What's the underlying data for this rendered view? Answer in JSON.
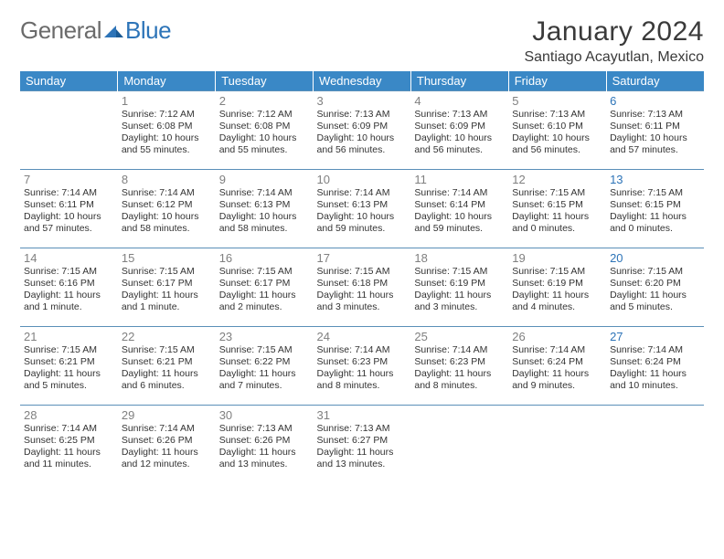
{
  "logo": {
    "text1": "General",
    "text2": "Blue"
  },
  "title": "January 2024",
  "location": "Santiago Acayutlan, Mexico",
  "colors": {
    "header_bg": "#3a88c6",
    "header_fg": "#ffffff",
    "row_border": "#5a8fb8",
    "daynum": "#808080",
    "text": "#333333",
    "saturday": "#2d74b8",
    "logo_gray": "#6b6b6b"
  },
  "weekdays": [
    "Sunday",
    "Monday",
    "Tuesday",
    "Wednesday",
    "Thursday",
    "Friday",
    "Saturday"
  ],
  "weeks": [
    [
      null,
      {
        "n": "1",
        "sr": "7:12 AM",
        "ss": "6:08 PM",
        "dl": "10 hours and 55 minutes."
      },
      {
        "n": "2",
        "sr": "7:12 AM",
        "ss": "6:08 PM",
        "dl": "10 hours and 55 minutes."
      },
      {
        "n": "3",
        "sr": "7:13 AM",
        "ss": "6:09 PM",
        "dl": "10 hours and 56 minutes."
      },
      {
        "n": "4",
        "sr": "7:13 AM",
        "ss": "6:09 PM",
        "dl": "10 hours and 56 minutes."
      },
      {
        "n": "5",
        "sr": "7:13 AM",
        "ss": "6:10 PM",
        "dl": "10 hours and 56 minutes."
      },
      {
        "n": "6",
        "sr": "7:13 AM",
        "ss": "6:11 PM",
        "dl": "10 hours and 57 minutes."
      }
    ],
    [
      {
        "n": "7",
        "sr": "7:14 AM",
        "ss": "6:11 PM",
        "dl": "10 hours and 57 minutes."
      },
      {
        "n": "8",
        "sr": "7:14 AM",
        "ss": "6:12 PM",
        "dl": "10 hours and 58 minutes."
      },
      {
        "n": "9",
        "sr": "7:14 AM",
        "ss": "6:13 PM",
        "dl": "10 hours and 58 minutes."
      },
      {
        "n": "10",
        "sr": "7:14 AM",
        "ss": "6:13 PM",
        "dl": "10 hours and 59 minutes."
      },
      {
        "n": "11",
        "sr": "7:14 AM",
        "ss": "6:14 PM",
        "dl": "10 hours and 59 minutes."
      },
      {
        "n": "12",
        "sr": "7:15 AM",
        "ss": "6:15 PM",
        "dl": "11 hours and 0 minutes."
      },
      {
        "n": "13",
        "sr": "7:15 AM",
        "ss": "6:15 PM",
        "dl": "11 hours and 0 minutes."
      }
    ],
    [
      {
        "n": "14",
        "sr": "7:15 AM",
        "ss": "6:16 PM",
        "dl": "11 hours and 1 minute."
      },
      {
        "n": "15",
        "sr": "7:15 AM",
        "ss": "6:17 PM",
        "dl": "11 hours and 1 minute."
      },
      {
        "n": "16",
        "sr": "7:15 AM",
        "ss": "6:17 PM",
        "dl": "11 hours and 2 minutes."
      },
      {
        "n": "17",
        "sr": "7:15 AM",
        "ss": "6:18 PM",
        "dl": "11 hours and 3 minutes."
      },
      {
        "n": "18",
        "sr": "7:15 AM",
        "ss": "6:19 PM",
        "dl": "11 hours and 3 minutes."
      },
      {
        "n": "19",
        "sr": "7:15 AM",
        "ss": "6:19 PM",
        "dl": "11 hours and 4 minutes."
      },
      {
        "n": "20",
        "sr": "7:15 AM",
        "ss": "6:20 PM",
        "dl": "11 hours and 5 minutes."
      }
    ],
    [
      {
        "n": "21",
        "sr": "7:15 AM",
        "ss": "6:21 PM",
        "dl": "11 hours and 5 minutes."
      },
      {
        "n": "22",
        "sr": "7:15 AM",
        "ss": "6:21 PM",
        "dl": "11 hours and 6 minutes."
      },
      {
        "n": "23",
        "sr": "7:15 AM",
        "ss": "6:22 PM",
        "dl": "11 hours and 7 minutes."
      },
      {
        "n": "24",
        "sr": "7:14 AM",
        "ss": "6:23 PM",
        "dl": "11 hours and 8 minutes."
      },
      {
        "n": "25",
        "sr": "7:14 AM",
        "ss": "6:23 PM",
        "dl": "11 hours and 8 minutes."
      },
      {
        "n": "26",
        "sr": "7:14 AM",
        "ss": "6:24 PM",
        "dl": "11 hours and 9 minutes."
      },
      {
        "n": "27",
        "sr": "7:14 AM",
        "ss": "6:24 PM",
        "dl": "11 hours and 10 minutes."
      }
    ],
    [
      {
        "n": "28",
        "sr": "7:14 AM",
        "ss": "6:25 PM",
        "dl": "11 hours and 11 minutes."
      },
      {
        "n": "29",
        "sr": "7:14 AM",
        "ss": "6:26 PM",
        "dl": "11 hours and 12 minutes."
      },
      {
        "n": "30",
        "sr": "7:13 AM",
        "ss": "6:26 PM",
        "dl": "11 hours and 13 minutes."
      },
      {
        "n": "31",
        "sr": "7:13 AM",
        "ss": "6:27 PM",
        "dl": "11 hours and 13 minutes."
      },
      null,
      null,
      null
    ]
  ],
  "labels": {
    "sunrise": "Sunrise: ",
    "sunset": "Sunset: ",
    "daylight": "Daylight: "
  }
}
